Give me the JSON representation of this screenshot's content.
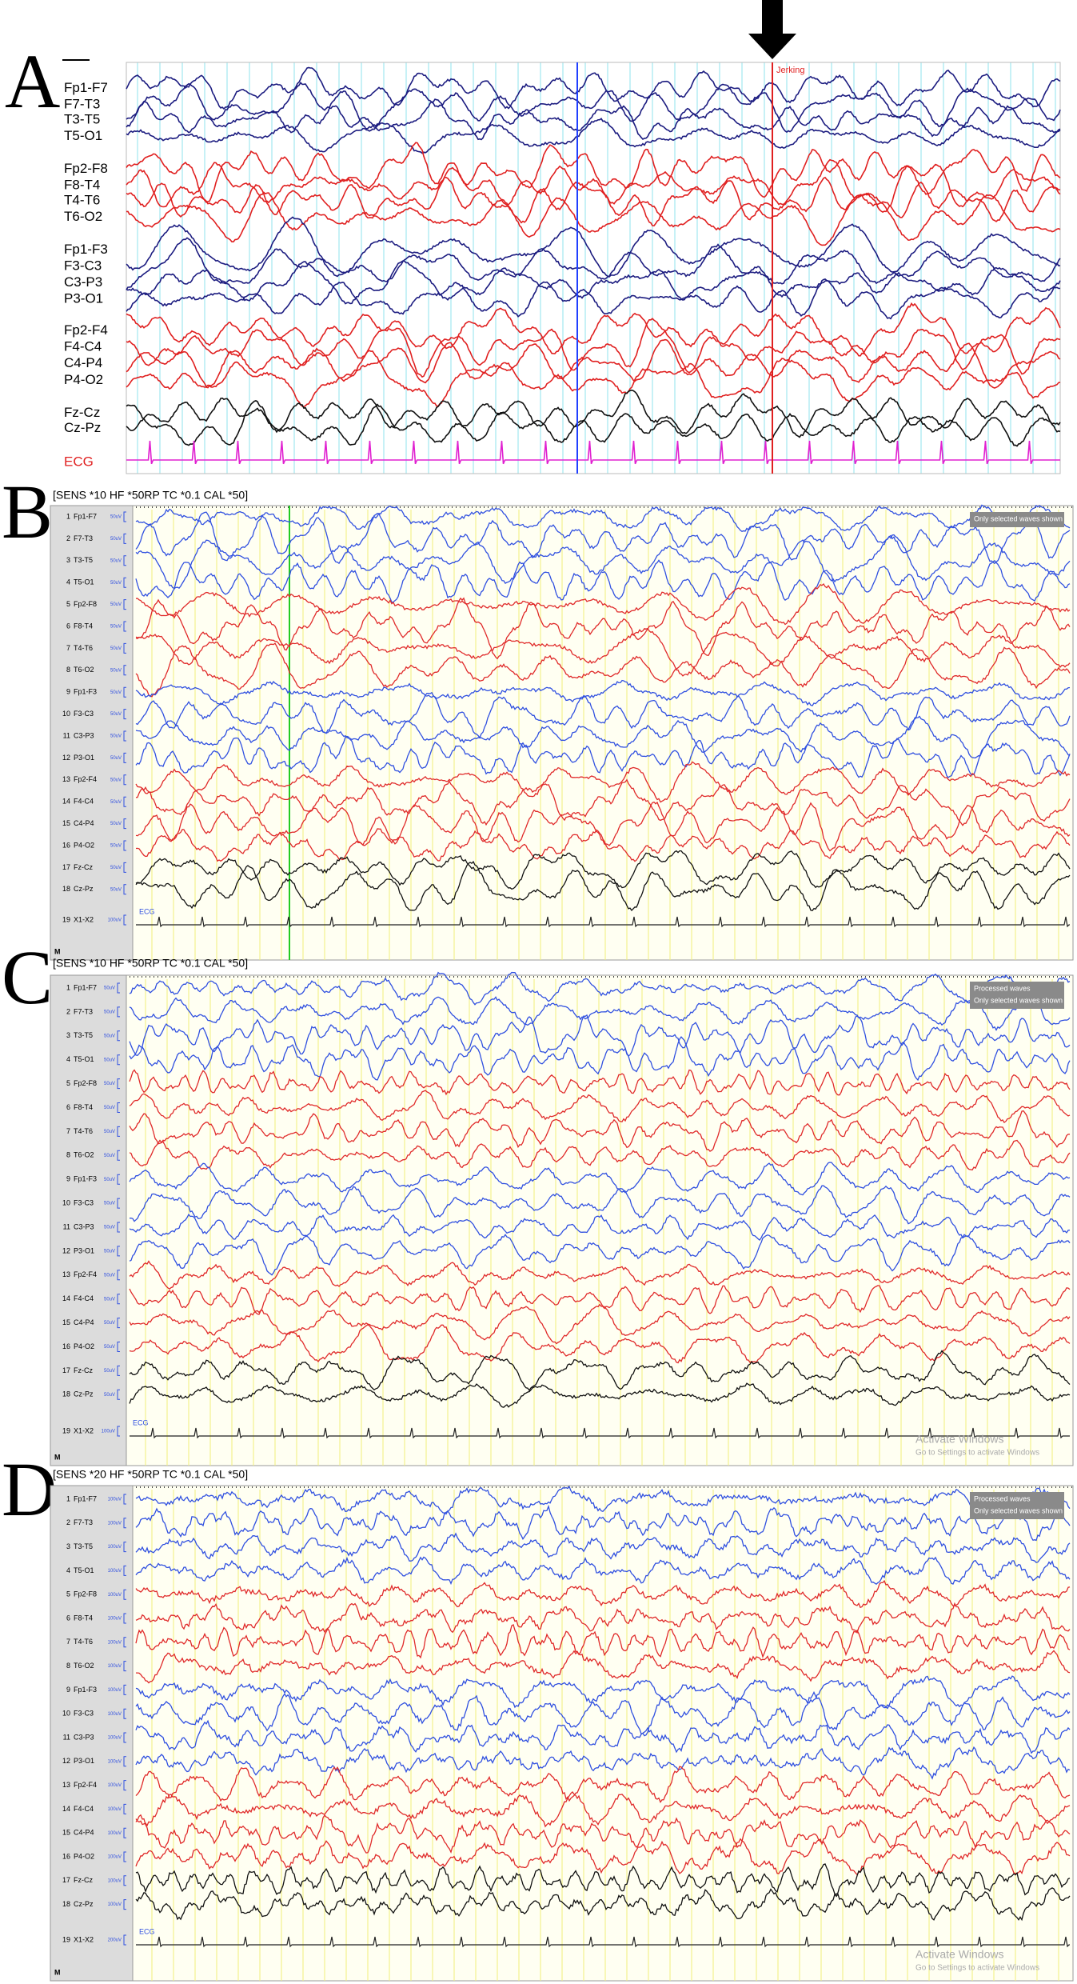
{
  "panels": [
    {
      "label": "A",
      "annotation": "Jerking",
      "ecg": "ECG",
      "channels": [
        "Fp1-F7",
        "F7-T3",
        "T3-T5",
        "T5-O1",
        "Fp2-F8",
        "F8-T4",
        "T4-T6",
        "T6-O2",
        "Fp1-F3",
        "F3-C3",
        "C3-P3",
        "P3-O1",
        "Fp2-F4",
        "F4-C4",
        "C4-P4",
        "P4-O2",
        "Fz-Cz",
        "Cz-Pz"
      ]
    },
    {
      "label": "B",
      "header": "[SENS *10  HF *50RP  TC *0.1  CAL *50]",
      "ecg": "ECG",
      "marker": "M",
      "overlay": [
        "Only selected waves shown"
      ],
      "channels": [
        {
          "n": 1,
          "name": "Fp1-F7",
          "scale": "50uV"
        },
        {
          "n": 2,
          "name": "F7-T3",
          "scale": "50uV"
        },
        {
          "n": 3,
          "name": "T3-T5",
          "scale": "50uV"
        },
        {
          "n": 4,
          "name": "T5-O1",
          "scale": "50uV"
        },
        {
          "n": 5,
          "name": "Fp2-F8",
          "scale": "50uV"
        },
        {
          "n": 6,
          "name": "F8-T4",
          "scale": "50uV"
        },
        {
          "n": 7,
          "name": "T4-T6",
          "scale": "50uV"
        },
        {
          "n": 8,
          "name": "T6-O2",
          "scale": "50uV"
        },
        {
          "n": 9,
          "name": "Fp1-F3",
          "scale": "50uV"
        },
        {
          "n": 10,
          "name": "F3-C3",
          "scale": "50uV"
        },
        {
          "n": 11,
          "name": "C3-P3",
          "scale": "50uV"
        },
        {
          "n": 12,
          "name": "P3-O1",
          "scale": "50uV"
        },
        {
          "n": 13,
          "name": "Fp2-F4",
          "scale": "50uV"
        },
        {
          "n": 14,
          "name": "F4-C4",
          "scale": "50uV"
        },
        {
          "n": 15,
          "name": "C4-P4",
          "scale": "50uV"
        },
        {
          "n": 16,
          "name": "P4-O2",
          "scale": "50uV"
        },
        {
          "n": 17,
          "name": "Fz-Cz",
          "scale": "50uV"
        },
        {
          "n": 18,
          "name": "Cz-Pz",
          "scale": "50uV"
        },
        {
          "n": 19,
          "name": "X1-X2",
          "scale": "100uV"
        }
      ]
    },
    {
      "label": "C",
      "header": "[SENS *10  HF *50RP  TC *0.1  CAL *50]",
      "ecg": "ECG",
      "marker": "M",
      "overlay": [
        "Processed waves",
        "Only selected waves shown"
      ],
      "watermark": [
        "Activate Windows",
        "Go to Settings to activate Windows"
      ],
      "channels": [
        {
          "n": 1,
          "name": "Fp1-F7",
          "scale": "50uV"
        },
        {
          "n": 2,
          "name": "F7-T3",
          "scale": "50uV"
        },
        {
          "n": 3,
          "name": "T3-T5",
          "scale": "50uV"
        },
        {
          "n": 4,
          "name": "T5-O1",
          "scale": "50uV"
        },
        {
          "n": 5,
          "name": "Fp2-F8",
          "scale": "50uV"
        },
        {
          "n": 6,
          "name": "F8-T4",
          "scale": "50uV"
        },
        {
          "n": 7,
          "name": "T4-T6",
          "scale": "50uV"
        },
        {
          "n": 8,
          "name": "T6-O2",
          "scale": "50uV"
        },
        {
          "n": 9,
          "name": "Fp1-F3",
          "scale": "50uV"
        },
        {
          "n": 10,
          "name": "F3-C3",
          "scale": "50uV"
        },
        {
          "n": 11,
          "name": "C3-P3",
          "scale": "50uV"
        },
        {
          "n": 12,
          "name": "P3-O1",
          "scale": "50uV"
        },
        {
          "n": 13,
          "name": "Fp2-F4",
          "scale": "50uV"
        },
        {
          "n": 14,
          "name": "F4-C4",
          "scale": "50uV"
        },
        {
          "n": 15,
          "name": "C4-P4",
          "scale": "50uV"
        },
        {
          "n": 16,
          "name": "P4-O2",
          "scale": "50uV"
        },
        {
          "n": 17,
          "name": "Fz-Cz",
          "scale": "50uV"
        },
        {
          "n": 18,
          "name": "Cz-Pz",
          "scale": "50uV"
        },
        {
          "n": 19,
          "name": "X1-X2",
          "scale": "100uV"
        }
      ]
    },
    {
      "label": "D",
      "header": "[SENS *20  HF *50RP  TC *0.1  CAL *50]",
      "ecg": "ECG",
      "marker": "M",
      "overlay": [
        "Processed waves",
        "Only selected waves shown"
      ],
      "watermark": [
        "Activate Windows",
        "Go to Settings to activate Windows"
      ],
      "channels": [
        {
          "n": 1,
          "name": "Fp1-F7",
          "scale": "100uV"
        },
        {
          "n": 2,
          "name": "F7-T3",
          "scale": "100uV"
        },
        {
          "n": 3,
          "name": "T3-T5",
          "scale": "100uV"
        },
        {
          "n": 4,
          "name": "T5-O1",
          "scale": "100uV"
        },
        {
          "n": 5,
          "name": "Fp2-F8",
          "scale": "100uV"
        },
        {
          "n": 6,
          "name": "F8-T4",
          "scale": "100uV"
        },
        {
          "n": 7,
          "name": "T4-T6",
          "scale": "100uV"
        },
        {
          "n": 8,
          "name": "T6-O2",
          "scale": "100uV"
        },
        {
          "n": 9,
          "name": "Fp1-F3",
          "scale": "100uV"
        },
        {
          "n": 10,
          "name": "F3-C3",
          "scale": "100uV"
        },
        {
          "n": 11,
          "name": "C3-P3",
          "scale": "100uV"
        },
        {
          "n": 12,
          "name": "P3-O1",
          "scale": "100uV"
        },
        {
          "n": 13,
          "name": "Fp2-F4",
          "scale": "100uV"
        },
        {
          "n": 14,
          "name": "F4-C4",
          "scale": "100uV"
        },
        {
          "n": 15,
          "name": "C4-P4",
          "scale": "100uV"
        },
        {
          "n": 16,
          "name": "P4-O2",
          "scale": "100uV"
        },
        {
          "n": 17,
          "name": "Fz-Cz",
          "scale": "100uV"
        },
        {
          "n": 18,
          "name": "Cz-Pz",
          "scale": "100uV"
        },
        {
          "n": 19,
          "name": "X1-X2",
          "scale": "200uV"
        }
      ]
    }
  ]
}
